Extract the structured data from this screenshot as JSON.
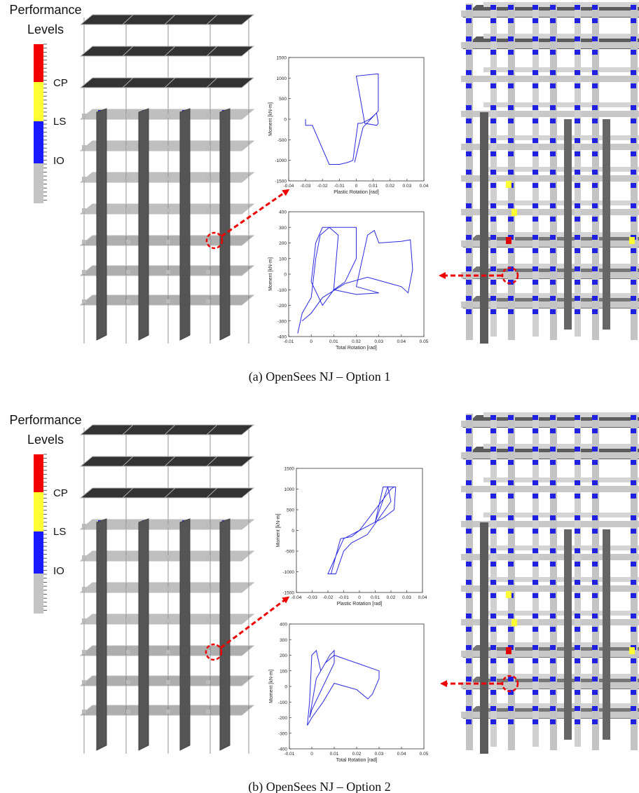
{
  "chart_data": [
    {
      "type": "line",
      "x_label": "Plastic Rotation [rad]",
      "y_label": "Moment [kN-m]",
      "color": "#2a2ae0",
      "x": [
        -0.03,
        -0.03,
        -0.026,
        -0.016,
        -0.01,
        -0.005,
        -0.002,
        0.001,
        0.003,
        0.008,
        0.012,
        0.013,
        0.012,
        0.005,
        0,
        0.012,
        0.013,
        0.013,
        0.004,
        -0.001
      ],
      "values": [
        0,
        -150,
        -150,
        -1100,
        -1100,
        -1050,
        -1000,
        -100,
        -100,
        0,
        150,
        -100,
        -150,
        -100,
        1050,
        1100,
        1100,
        200,
        -200,
        -1050
      ],
      "xlim": [
        -0.04,
        0.04
      ],
      "xticks": [
        -0.04,
        -0.03,
        -0.02,
        -0.01,
        0,
        0.01,
        0.02,
        0.03,
        0.04
      ],
      "ylim": [
        -1500,
        1500
      ],
      "yticks": [
        -1500,
        -1000,
        -500,
        0,
        500,
        1000,
        1500
      ]
    },
    {
      "type": "line",
      "x_label": "Total Rotation [rad]",
      "y_label": "Moment [kN-m]",
      "color": "#2a2ae0",
      "x": [
        -0.006,
        -0.004,
        0,
        0.002,
        0.004,
        0.008,
        0.012,
        0.01,
        0.005,
        0,
        0.002,
        0.005,
        0.02,
        0.02,
        0.015,
        0.01,
        0.02,
        0.03,
        0.02,
        0.025,
        0.028,
        0.03,
        0.04,
        0.044,
        0.045,
        0.043,
        0.04,
        0.035,
        0.025,
        0.015,
        0.005,
        0,
        -0.004
      ],
      "values": [
        -380,
        -250,
        -150,
        100,
        250,
        300,
        250,
        -100,
        -200,
        -50,
        200,
        300,
        300,
        100,
        -50,
        -100,
        -130,
        -120,
        -80,
        250,
        280,
        200,
        210,
        220,
        30,
        -120,
        -80,
        -60,
        -20,
        -60,
        -150,
        -250,
        -300
      ],
      "xlim": [
        -0.01,
        0.05
      ],
      "xticks": [
        -0.01,
        0,
        0.01,
        0.02,
        0.03,
        0.04,
        0.05
      ],
      "ylim": [
        -400,
        400
      ],
      "yticks": [
        -400,
        -300,
        -200,
        -100,
        0,
        100,
        200,
        300,
        400
      ]
    },
    {
      "type": "line",
      "x_label": "Plastic Rotation [rad]",
      "y_label": "Moment [kN-m]",
      "color": "#2a2ae0",
      "x": [
        -0.015,
        -0.018,
        -0.012,
        -0.005,
        0,
        0.01,
        0.015,
        0.023,
        0.022,
        0.015,
        0.01,
        0.018,
        0.02,
        0.005,
        -0.005,
        -0.01,
        -0.015,
        -0.02,
        -0.01,
        0,
        0.02,
        0.022
      ],
      "values": [
        -1050,
        -1050,
        -200,
        -150,
        0,
        200,
        1050,
        1050,
        500,
        300,
        200,
        1050,
        700,
        -100,
        -300,
        -500,
        -1050,
        -1050,
        -200,
        0,
        1000,
        1050
      ],
      "xlim": [
        -0.04,
        0.04
      ],
      "xticks": [
        -0.04,
        -0.03,
        -0.02,
        -0.01,
        0,
        0.01,
        0.02,
        0.03,
        0.04
      ],
      "ylim": [
        -1500,
        1500
      ],
      "yticks": [
        -1500,
        -1000,
        -500,
        0,
        500,
        1000,
        1500
      ]
    },
    {
      "type": "line",
      "x_label": "Total Rotation [rad]",
      "y_label": "Moment [kN-m]",
      "color": "#2a2ae0",
      "x": [
        -0.002,
        -0.001,
        0,
        0.002,
        0.004,
        0.008,
        0.01,
        0.01,
        0.005,
        0,
        -0.001,
        0.002,
        0.006,
        0.01,
        0.02,
        0.03,
        0.03,
        0.027,
        0.025,
        0.02,
        0.01,
        0.005,
        0,
        -0.002
      ],
      "values": [
        -250,
        -100,
        200,
        230,
        100,
        200,
        230,
        150,
        0,
        -150,
        -200,
        50,
        150,
        200,
        150,
        100,
        50,
        -50,
        -80,
        -20,
        20,
        -100,
        -200,
        -250
      ],
      "xlim": [
        -0.01,
        0.05
      ],
      "xticks": [
        -0.01,
        0,
        0.01,
        0.02,
        0.03,
        0.04,
        0.05
      ],
      "ylim": [
        -400,
        400
      ],
      "yticks": [
        -400,
        -300,
        -200,
        -100,
        0,
        100,
        200,
        300,
        400
      ]
    }
  ],
  "panels": [
    {
      "legend": {
        "title": "Performance Levels",
        "levels": [
          "CP",
          "LS",
          "IO"
        ]
      },
      "caption": "(a) OpenSees NJ – Option 1"
    },
    {
      "legend": {
        "title": "Performance Levels",
        "levels": [
          "CP",
          "LS",
          "IO"
        ]
      },
      "caption": "(b) OpenSees NJ – Option 2"
    }
  ]
}
